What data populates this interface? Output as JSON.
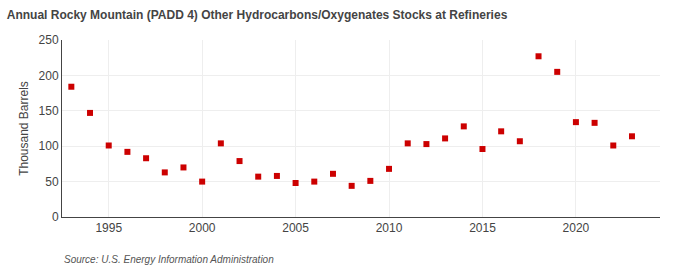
{
  "chart_data": {
    "type": "scatter",
    "title": "Annual Rocky Mountain (PADD 4) Other Hydrocarbons/Oxygenates Stocks at Refineries",
    "ylabel": "Thousand Barrels",
    "annotation": "Source: U.S. Energy Information Administration",
    "x": [
      1993,
      1994,
      1995,
      1996,
      1997,
      1998,
      1999,
      2000,
      2001,
      2002,
      2003,
      2004,
      2005,
      2006,
      2007,
      2008,
      2009,
      2010,
      2011,
      2012,
      2013,
      2014,
      2015,
      2016,
      2017,
      2018,
      2019,
      2020,
      2021,
      2022,
      2023
    ],
    "values": [
      184,
      147,
      101,
      92,
      83,
      63,
      70,
      50,
      104,
      79,
      57,
      58,
      48,
      50,
      61,
      44,
      51,
      68,
      104,
      103,
      111,
      128,
      96,
      121,
      107,
      227,
      205,
      134,
      133,
      101,
      114
    ],
    "color": "#cc0000",
    "marker": "square",
    "xlim": [
      1992.5,
      2024.5
    ],
    "xticks": [
      1995,
      2000,
      2005,
      2010,
      2015,
      2020
    ],
    "ylim": [
      0,
      250
    ],
    "yticks": [
      0,
      50,
      100,
      150,
      200,
      250
    ],
    "grid": true
  }
}
